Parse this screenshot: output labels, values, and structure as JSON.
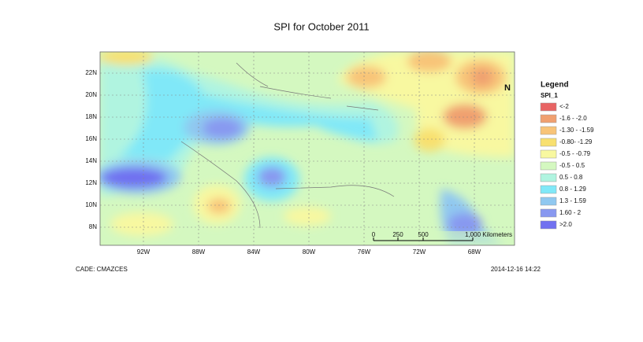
{
  "title": "SPI  for October 2011",
  "map": {
    "lat_labels": [
      "22N",
      "20N",
      "18N",
      "16N",
      "14N",
      "12N",
      "10N",
      "8N"
    ],
    "lon_labels": [
      "92W",
      "88W",
      "84W",
      "80W",
      "76W",
      "72W",
      "68W"
    ],
    "scale_bar": [
      "0",
      "250",
      "500",
      "1,000 Kilometers"
    ]
  },
  "legend": {
    "title": "Legend",
    "layer": "SPI_1",
    "items": [
      {
        "label": "<-2",
        "color": "#e86464"
      },
      {
        "label": "-1.6 - -2.0",
        "color": "#f0a070"
      },
      {
        "label": "-1.30 - -1.59",
        "color": "#f8c478"
      },
      {
        "label": "-0.80- -1.29",
        "color": "#f8e070"
      },
      {
        "label": "-0.5 - -0.79",
        "color": "#f8f8a0"
      },
      {
        "label": "-0.5 - 0.5",
        "color": "#d4f8c0"
      },
      {
        "label": "0.5 - 0.8",
        "color": "#b0f4e0"
      },
      {
        "label": "0.8 - 1.29",
        "color": "#80e8f8"
      },
      {
        "label": "1.3 - 1.59",
        "color": "#90c8f0"
      },
      {
        "label": "1.60 - 2",
        "color": "#8898f0"
      },
      {
        "label": ">2.0",
        "color": "#7070f0"
      }
    ]
  },
  "footer": {
    "left": "CADE: CMAZCES",
    "right": "2014-12-16 14:22"
  }
}
